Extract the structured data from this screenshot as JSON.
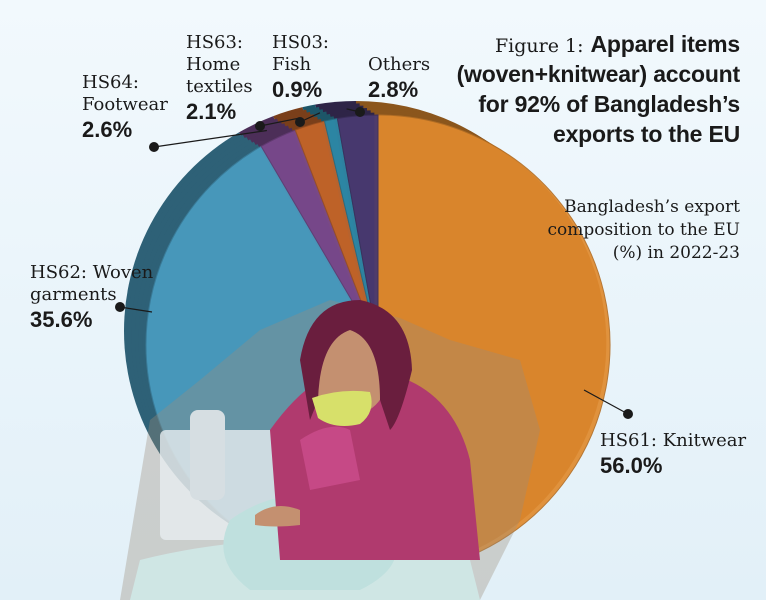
{
  "chart_data": {
    "type": "pie",
    "figure_label": "Figure 1:",
    "title": "Apparel items (woven+knitwear) account for 92% of Bangladesh’s exports to the EU",
    "subtitle": "Bangladesh’s export composition to the EU (%) in 2022-23",
    "slices": [
      {
        "name": "HS61: Knitwear",
        "value": 56.0,
        "value_label": "56.0%",
        "color": "#e08a2e"
      },
      {
        "name": "HS62: Woven garments",
        "value": 35.6,
        "value_label": "35.6%",
        "color": "#4a9cc0"
      },
      {
        "name": "HS64: Footwear",
        "value": 2.6,
        "value_label": "2.6%",
        "color": "#7a4a8e"
      },
      {
        "name": "HS63: Home textiles",
        "value": 2.1,
        "value_label": "2.1%",
        "color": "#c4652a"
      },
      {
        "name": "HS03: Fish",
        "value": 0.9,
        "value_label": "0.9%",
        "color": "#2e8aa8"
      },
      {
        "name": "Others",
        "value": 2.8,
        "value_label": "2.8%",
        "color": "#4a3a72"
      }
    ]
  }
}
